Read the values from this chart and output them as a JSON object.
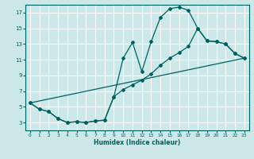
{
  "xlabel": "Humidex (Indice chaleur)",
  "bg_color": "#cce8e8",
  "grid_color": "#ffffff",
  "line_color": "#006060",
  "xlim": [
    -0.5,
    23.5
  ],
  "ylim": [
    2.0,
    18.0
  ],
  "xticks": [
    0,
    1,
    2,
    3,
    4,
    5,
    6,
    7,
    8,
    9,
    10,
    11,
    12,
    13,
    14,
    15,
    16,
    17,
    18,
    19,
    20,
    21,
    22,
    23
  ],
  "yticks": [
    3,
    5,
    7,
    9,
    11,
    13,
    15,
    17
  ],
  "line1_x": [
    0,
    1,
    2,
    3,
    4,
    5,
    6,
    7,
    8,
    9,
    10,
    11,
    12,
    13,
    14,
    15,
    16,
    17,
    18,
    19,
    20,
    21,
    22,
    23
  ],
  "line1_y": [
    5.5,
    4.7,
    4.4,
    3.5,
    3.0,
    3.1,
    3.0,
    3.2,
    3.3,
    6.3,
    11.2,
    13.2,
    9.5,
    13.3,
    16.4,
    17.5,
    17.7,
    17.3,
    15.0,
    13.4,
    13.3,
    13.0,
    11.8,
    11.2
  ],
  "line2_x": [
    0,
    1,
    2,
    3,
    4,
    5,
    6,
    7,
    8,
    9,
    10,
    11,
    12,
    13,
    14,
    15,
    16,
    17,
    18,
    19,
    20,
    21,
    22,
    23
  ],
  "line2_y": [
    5.5,
    4.7,
    4.4,
    3.5,
    3.0,
    3.1,
    3.0,
    3.2,
    3.3,
    6.3,
    7.2,
    7.8,
    8.4,
    9.2,
    10.3,
    11.2,
    11.9,
    12.7,
    15.0,
    13.4,
    13.3,
    13.0,
    11.8,
    11.2
  ],
  "line3_x": [
    0,
    23
  ],
  "line3_y": [
    5.5,
    11.2
  ]
}
